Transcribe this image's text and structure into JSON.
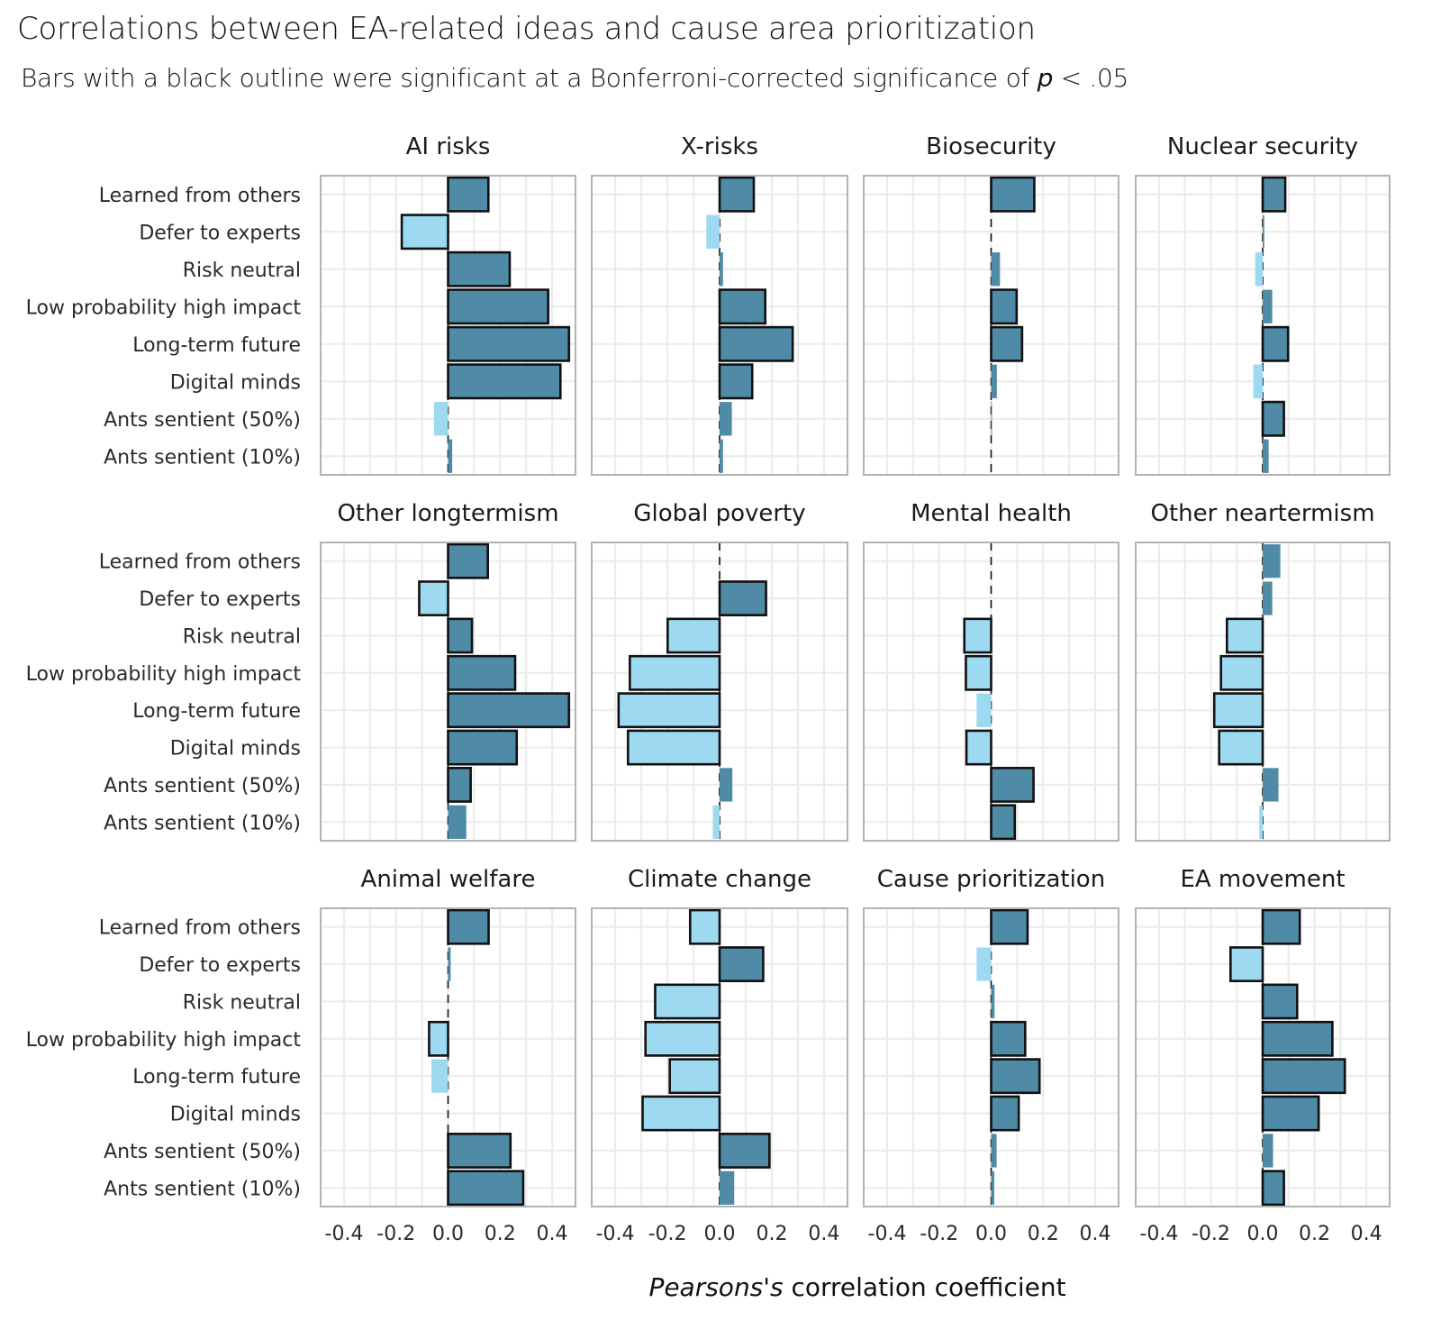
{
  "header": {
    "title": "Correlations between EA-related ideas and cause area prioritization",
    "subtitle_pre": "Bars with a black outline were significant at a Bonferroni-corrected significance of ",
    "subtitle_p": "p",
    "subtitle_post": " < .05"
  },
  "colors": {
    "positive": "#4f8aa6",
    "negative": "#9ed9f2",
    "outline": "#111111",
    "panel_border": "#b3b3b3",
    "grid": "#ececec"
  },
  "chart_data": {
    "type": "bar",
    "orientation": "horizontal",
    "layout": "facet-grid 3x4",
    "title": "Correlations between EA-related ideas and cause area prioritization",
    "subtitle": "Bars with a black outline were significant at a Bonferroni-corrected significance of p < .05",
    "xlabel_italic": "Pearsons's",
    "xlabel_rest": " correlation coefficient",
    "ylabel": "",
    "xlim": [
      -0.49,
      0.49
    ],
    "xticks": [
      -0.4,
      -0.2,
      0.0,
      0.2,
      0.4
    ],
    "xtick_labels": [
      "-0.4",
      "-0.2",
      "0.0",
      "0.2",
      "0.4"
    ],
    "grid": true,
    "zero_line": "dashed",
    "fill_rule": "dark teal for positive r, light blue for negative r",
    "categories": [
      "Learned from others",
      "Defer to experts",
      "Risk neutral",
      "Low probability high impact",
      "Long-term future",
      "Digital minds",
      "Ants sentient (50%)",
      "Ants sentient (10%)"
    ],
    "panels": [
      {
        "name": "AI risks",
        "values": [
          0.155,
          -0.178,
          0.237,
          0.385,
          0.465,
          0.432,
          -0.054,
          0.016
        ],
        "significant": [
          true,
          true,
          true,
          true,
          true,
          true,
          false,
          false
        ]
      },
      {
        "name": "X-risks",
        "values": [
          0.131,
          -0.051,
          0.013,
          0.175,
          0.28,
          0.125,
          0.047,
          0.013
        ],
        "significant": [
          true,
          false,
          false,
          true,
          true,
          true,
          false,
          false
        ]
      },
      {
        "name": "Biosecurity",
        "values": [
          0.166,
          0.0,
          0.034,
          0.098,
          0.119,
          0.022,
          0.003,
          0.0
        ],
        "significant": [
          true,
          false,
          false,
          true,
          true,
          false,
          false,
          false
        ]
      },
      {
        "name": "Nuclear security",
        "values": [
          0.087,
          0.006,
          -0.029,
          0.037,
          0.098,
          -0.036,
          0.082,
          0.023
        ],
        "significant": [
          true,
          false,
          false,
          false,
          true,
          false,
          true,
          false
        ]
      },
      {
        "name": "Other longtermism",
        "values": [
          0.153,
          -0.111,
          0.092,
          0.258,
          0.465,
          0.264,
          0.087,
          0.07
        ],
        "significant": [
          true,
          true,
          true,
          true,
          true,
          true,
          true,
          false
        ]
      },
      {
        "name": "Global poverty",
        "values": [
          0.0,
          0.178,
          -0.199,
          -0.344,
          -0.387,
          -0.351,
          0.049,
          -0.026
        ],
        "significant": [
          false,
          true,
          true,
          true,
          true,
          true,
          false,
          false
        ]
      },
      {
        "name": "Mental health",
        "values": [
          0.0,
          0.0,
          -0.103,
          -0.097,
          -0.056,
          -0.095,
          0.163,
          0.091
        ],
        "significant": [
          false,
          false,
          true,
          true,
          false,
          true,
          true,
          true
        ]
      },
      {
        "name": "Other neartermism",
        "values": [
          0.068,
          0.037,
          -0.138,
          -0.161,
          -0.187,
          -0.168,
          0.061,
          -0.013
        ],
        "significant": [
          false,
          false,
          true,
          true,
          true,
          true,
          false,
          false
        ]
      },
      {
        "name": "Animal welfare",
        "values": [
          0.156,
          0.01,
          0.0,
          -0.073,
          -0.064,
          0.0,
          0.24,
          0.289
        ],
        "significant": [
          true,
          false,
          false,
          true,
          false,
          false,
          true,
          true
        ]
      },
      {
        "name": "Climate change",
        "values": [
          -0.113,
          0.167,
          -0.247,
          -0.284,
          -0.191,
          -0.295,
          0.191,
          0.056
        ],
        "significant": [
          true,
          true,
          true,
          true,
          true,
          true,
          true,
          false
        ]
      },
      {
        "name": "Cause prioritization",
        "values": [
          0.14,
          -0.056,
          0.013,
          0.131,
          0.186,
          0.106,
          0.021,
          0.012
        ],
        "significant": [
          true,
          false,
          false,
          true,
          true,
          true,
          false,
          false
        ]
      },
      {
        "name": "EA movement",
        "values": [
          0.143,
          -0.124,
          0.133,
          0.269,
          0.317,
          0.216,
          0.04,
          0.082
        ],
        "significant": [
          true,
          true,
          true,
          true,
          true,
          true,
          false,
          true
        ]
      }
    ]
  }
}
